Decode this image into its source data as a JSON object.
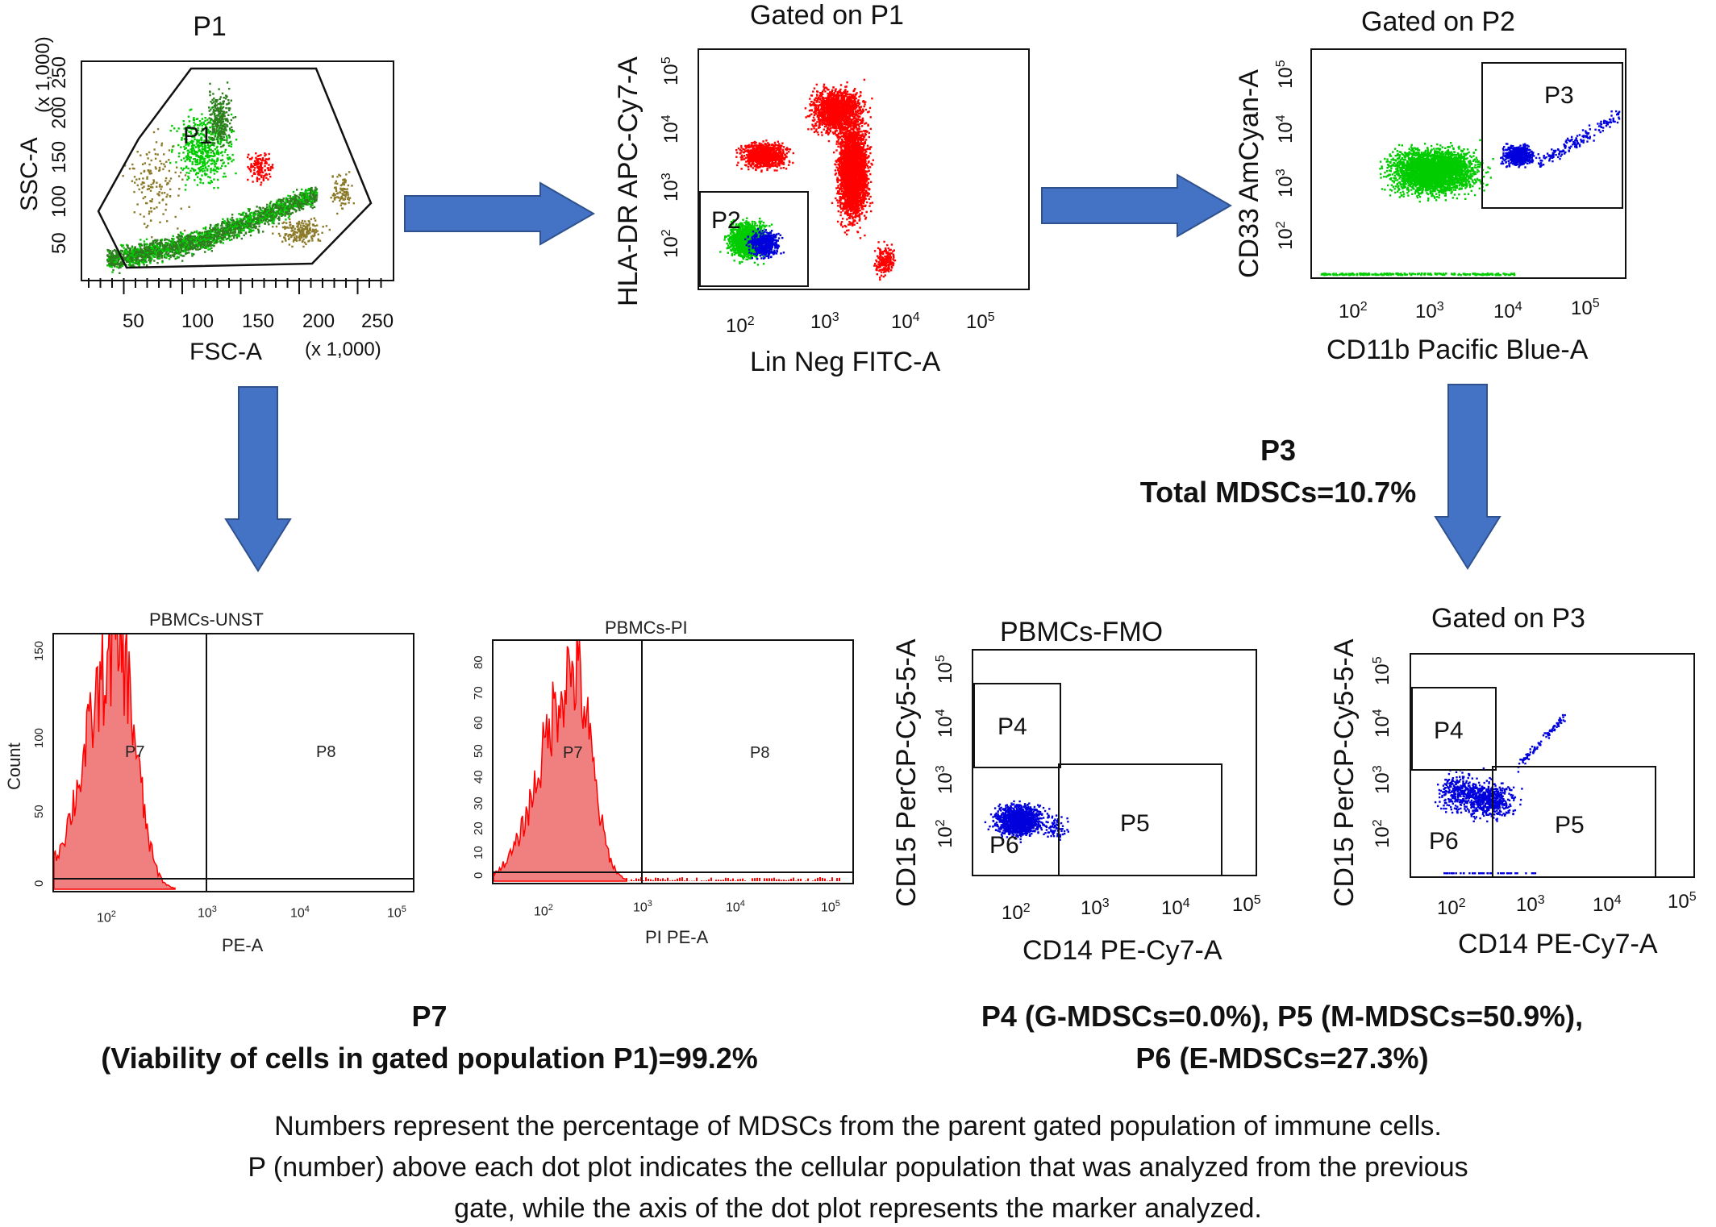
{
  "panels": {
    "p1": {
      "title": "P1",
      "xlabel": "FSC-A",
      "xunit": "(x 1,000)",
      "ylabel": "SSC-A",
      "yunit": "(x 1,000)",
      "xticks": [
        "50",
        "100",
        "150",
        "200",
        "250"
      ],
      "yticks": [
        "50",
        "100",
        "150",
        "200",
        "250"
      ],
      "gate": "P1"
    },
    "p2": {
      "title": "Gated on P1",
      "xlabel": "Lin Neg FITC-A",
      "ylabel": "HLA-DR APC-Cy7-A",
      "gate": "P2"
    },
    "p3": {
      "title": "Gated on P2",
      "xlabel": "CD11b Pacific Blue-A",
      "ylabel": "CD33 AmCyan-A",
      "gate": "P3"
    },
    "h1": {
      "title": "PBMCs-UNST",
      "xlabel": "PE-A",
      "ylabel": "Count",
      "gate_left": "P7",
      "gate_right": "P8",
      "yticks": [
        "0",
        "50",
        "100",
        "150"
      ]
    },
    "h2": {
      "title": "PBMCs-PI",
      "xlabel": "PI PE-A",
      "gate_left": "P7",
      "gate_right": "P8",
      "yticks": [
        "0",
        "10",
        "20",
        "30",
        "40",
        "50",
        "60",
        "70",
        "80"
      ]
    },
    "d1": {
      "title": "PBMCs-FMO",
      "xlabel": "CD14 PE-Cy7-A",
      "ylabel": "CD15 PerCP-Cy5-5-A",
      "g1": "P4",
      "g2": "P5",
      "g3": "P6"
    },
    "d2": {
      "title": "Gated on P3",
      "xlabel": "CD14 PE-Cy7-A",
      "ylabel": "CD15 PerCP-Cy5-5-A",
      "g1": "P4",
      "g2": "P5",
      "g3": "P6"
    }
  },
  "log": {
    "base": "10",
    "e2": "2",
    "e3": "3",
    "e4": "4",
    "e5": "5"
  },
  "results": {
    "p3_line1": "P3",
    "p3_line2": "Total MDSCs=10.7%",
    "p7_line1": "P7",
    "p7_line2": "(Viability of cells in gated population P1)=99.2%",
    "p456_line1": "P4 (G-MDSCs=0.0%), P5 (M-MDSCs=50.9%),",
    "p456_line2": "P6 (E-MDSCs=27.3%)"
  },
  "caption": {
    "line1": "Numbers represent the percentage of MDSCs from the parent gated population of immune cells.",
    "line2": "P (number) above each dot plot indicates the cellular population that was analyzed from the previous",
    "line3": "gate, while the axis of the dot plot represents the marker analyzed."
  },
  "colors": {
    "arrow": "#4472c4",
    "arrow_edge": "#2f528f",
    "red": "#ff0000",
    "green": "#00cc00",
    "darkgreen": "#2e7d1e",
    "blue": "#0000dd",
    "olive": "#8a7a2a",
    "hist_fill": "#f08080"
  }
}
